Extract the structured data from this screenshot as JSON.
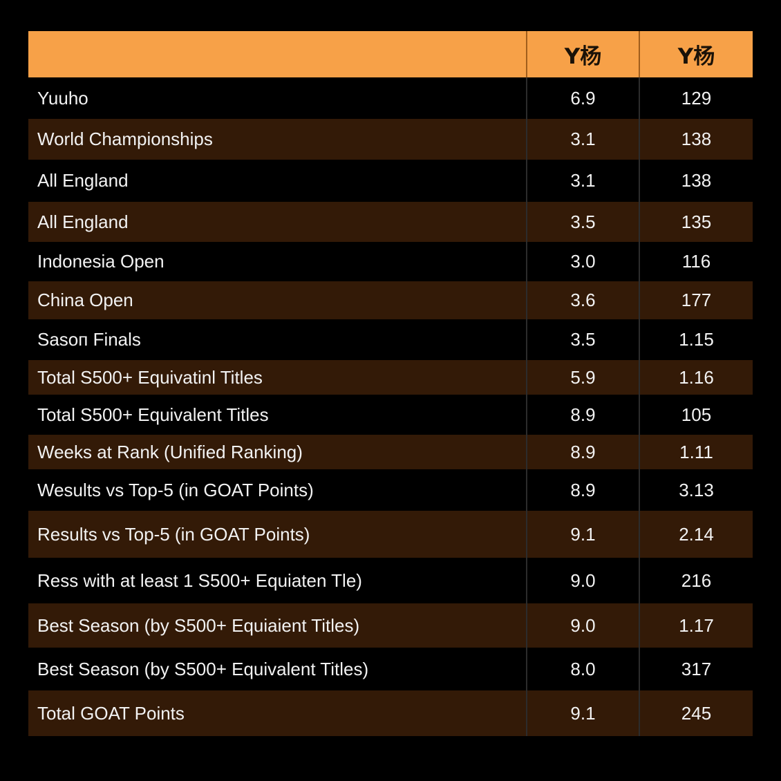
{
  "chart_data": {
    "type": "table",
    "colors": {
      "header": "#f7a148",
      "row_dark": "#000000",
      "row_brown": "#331a07"
    },
    "columns": [
      "",
      "Y杨",
      "Y杨"
    ],
    "rows": [
      {
        "label": "Yuuho",
        "a": "6.9",
        "b": "129"
      },
      {
        "label": "World Championships",
        "a": "3.1",
        "b": "138"
      },
      {
        "label": "All England",
        "a": "3.1",
        "b": "138"
      },
      {
        "label": "All England",
        "a": "3.5",
        "b": "135"
      },
      {
        "label": "Indonesia Open",
        "a": "3.0",
        "b": "116"
      },
      {
        "label": "China Open",
        "a": "3.6",
        "b": "177"
      },
      {
        "label": "Sasoп Finals",
        "a": "3.5",
        "b": "1.15"
      },
      {
        "label": "Total S500+ Equivatinl Titles",
        "a": "5.9",
        "b": "1.16"
      },
      {
        "label": "Total S500+ Equivalent Titles",
        "a": "8.9",
        "b": "105"
      },
      {
        "label": "Weeks at Rank (Unified Ranking)",
        "a": "8.9",
        "b": "1.11"
      },
      {
        "label": "Wesults vs Top-5 (in GOAT Points)",
        "a": "8.9",
        "b": "3.13"
      },
      {
        "label": "Results vs Top-5 (in GOAT Points)",
        "a": "9.1",
        "b": "2.14"
      },
      {
        "label": "Ress with at least 1 S500+ Equiaten Tle)",
        "a": "9.0",
        "b": "216"
      },
      {
        "label": "Best Season (by S500+ Equiaient Titles)",
        "a": "9.0",
        "b": "1.17"
      },
      {
        "label": "Best Season (by S500+ Equivalent Titles)",
        "a": "8.0",
        "b": "317"
      },
      {
        "label": "Total GOAT Points",
        "a": "9.1",
        "b": "245"
      }
    ]
  }
}
